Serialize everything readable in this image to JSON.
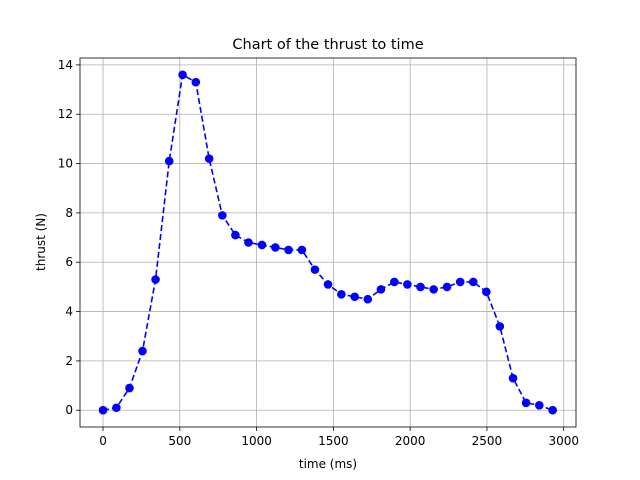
{
  "chart_data": {
    "type": "line",
    "title": "Chart of the thrust to time",
    "xlabel": "time (ms)",
    "ylabel": "thrust (N)",
    "xlim": [
      -150,
      3080
    ],
    "ylim": [
      -0.68,
      14.28
    ],
    "xticks": [
      0,
      500,
      1000,
      1500,
      2000,
      2500,
      3000
    ],
    "yticks": [
      0,
      2,
      4,
      6,
      8,
      10,
      12,
      14
    ],
    "grid": true,
    "line_style": "dashed",
    "marker": "circle",
    "color": "#0000ff",
    "series": [
      {
        "x": [
          0,
          87,
          172,
          257,
          342,
          431,
          518,
          604,
          691,
          777,
          862,
          947,
          1035,
          1122,
          1208,
          1295,
          1380,
          1465,
          1552,
          1639,
          1724,
          1810,
          1897,
          1982,
          2067,
          2153,
          2240,
          2326,
          2411,
          2496,
          2584,
          2670,
          2755,
          2841,
          2928
        ],
        "y": [
          0,
          0.1,
          0.9,
          2.4,
          5.3,
          10.1,
          13.6,
          13.3,
          10.2,
          7.9,
          7.1,
          6.8,
          6.7,
          6.6,
          6.5,
          6.5,
          5.7,
          5.1,
          4.7,
          4.6,
          4.5,
          4.9,
          5.2,
          5.1,
          5.0,
          4.9,
          5.0,
          5.2,
          5.2,
          4.8,
          3.4,
          1.3,
          0.3,
          0.2,
          0.0
        ]
      }
    ]
  }
}
